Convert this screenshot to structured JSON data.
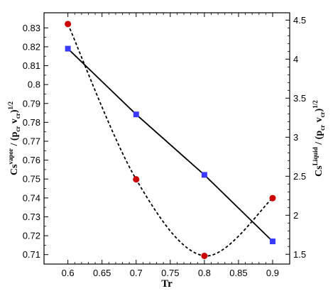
{
  "chart_data": {
    "type": "line",
    "xlabel": "Tr",
    "ylabel_left": {
      "main": "Cs",
      "sup1": "vapor",
      "mid": " / (p",
      "sub1": "cr",
      "mid2": " v",
      "sub2": "cr",
      "end": ")",
      "sup2": "1/2"
    },
    "ylabel_right": {
      "main": "Cs",
      "sup1": "Liquid",
      "mid": " / (p",
      "sub1": "cr",
      "mid2": " v",
      "sub2": "cr",
      "end": ")",
      "sup2": "1/2"
    },
    "xlim": [
      0.565,
      0.925
    ],
    "ylim_left": [
      0.705,
      0.838
    ],
    "ylim_right": [
      1.375,
      4.594
    ],
    "x_ticks": [
      "0.6",
      "0.65",
      "0.7",
      "0.75",
      "0.8",
      "0.85",
      "0.9"
    ],
    "y_left_ticks": [
      "0.71",
      "0.72",
      "0.73",
      "0.74",
      "0.75",
      "0.76",
      "0.77",
      "0.78",
      "0.79",
      "0.8",
      "0.81",
      "0.82",
      "0.83"
    ],
    "y_right_ticks": [
      "1.5",
      "2",
      "2.5",
      "3",
      "3.5",
      "4",
      "4.5"
    ],
    "series": [
      {
        "axis": "left",
        "style": "solid",
        "marker": "square",
        "color": "#3a3aff",
        "x": [
          0.6,
          0.7,
          0.8,
          0.9
        ],
        "y": [
          0.819,
          0.7842,
          0.7522,
          0.717
        ]
      },
      {
        "axis": "right",
        "style": "dashed",
        "marker": "circle",
        "color": "#cc0000",
        "x": [
          0.6,
          0.7,
          0.8,
          0.9
        ],
        "y": [
          4.45,
          2.46,
          1.48,
          2.22
        ]
      }
    ]
  }
}
